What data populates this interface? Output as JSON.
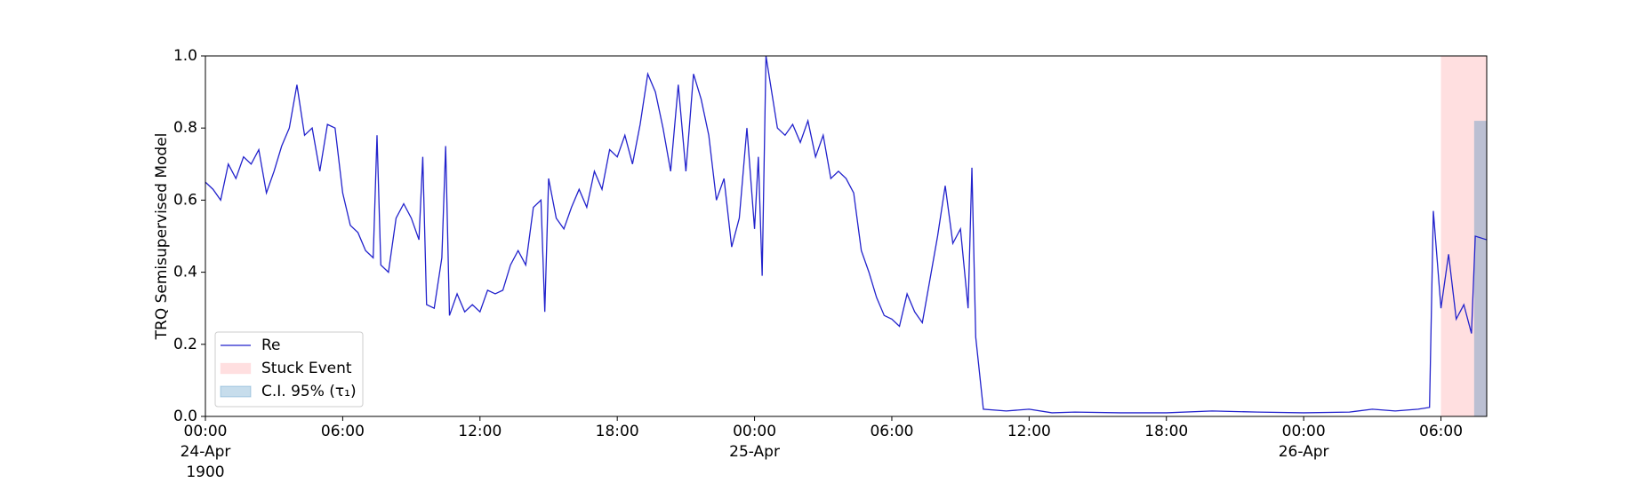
{
  "chart_data": {
    "type": "line",
    "ylabel": "TRQ Semisupervised Model",
    "x": [
      "1900-04-24 00:00",
      "1900-04-24 00:20",
      "1900-04-24 00:40",
      "1900-04-24 01:00",
      "1900-04-24 01:20",
      "1900-04-24 01:40",
      "1900-04-24 02:00",
      "1900-04-24 02:20",
      "1900-04-24 02:40",
      "1900-04-24 03:00",
      "1900-04-24 03:20",
      "1900-04-24 03:40",
      "1900-04-24 04:00",
      "1900-04-24 04:20",
      "1900-04-24 04:40",
      "1900-04-24 05:00",
      "1900-04-24 05:20",
      "1900-04-24 05:40",
      "1900-04-24 06:00",
      "1900-04-24 06:20",
      "1900-04-24 06:40",
      "1900-04-24 07:00",
      "1900-04-24 07:20",
      "1900-04-24 07:30",
      "1900-04-24 07:40",
      "1900-04-24 08:00",
      "1900-04-24 08:20",
      "1900-04-24 08:40",
      "1900-04-24 09:00",
      "1900-04-24 09:20",
      "1900-04-24 09:30",
      "1900-04-24 09:40",
      "1900-04-24 10:00",
      "1900-04-24 10:20",
      "1900-04-24 10:30",
      "1900-04-24 10:40",
      "1900-04-24 11:00",
      "1900-04-24 11:20",
      "1900-04-24 11:40",
      "1900-04-24 12:00",
      "1900-04-24 12:20",
      "1900-04-24 12:40",
      "1900-04-24 13:00",
      "1900-04-24 13:20",
      "1900-04-24 13:40",
      "1900-04-24 14:00",
      "1900-04-24 14:20",
      "1900-04-24 14:40",
      "1900-04-24 14:50",
      "1900-04-24 15:00",
      "1900-04-24 15:20",
      "1900-04-24 15:40",
      "1900-04-24 16:00",
      "1900-04-24 16:20",
      "1900-04-24 16:40",
      "1900-04-24 17:00",
      "1900-04-24 17:20",
      "1900-04-24 17:40",
      "1900-04-24 18:00",
      "1900-04-24 18:20",
      "1900-04-24 18:40",
      "1900-04-24 19:00",
      "1900-04-24 19:20",
      "1900-04-24 19:40",
      "1900-04-24 20:00",
      "1900-04-24 20:20",
      "1900-04-24 20:40",
      "1900-04-24 21:00",
      "1900-04-24 21:20",
      "1900-04-24 21:40",
      "1900-04-24 22:00",
      "1900-04-24 22:20",
      "1900-04-24 22:40",
      "1900-04-24 23:00",
      "1900-04-24 23:20",
      "1900-04-24 23:40",
      "1900-04-25 00:00",
      "1900-04-25 00:10",
      "1900-04-25 00:20",
      "1900-04-25 00:30",
      "1900-04-25 01:00",
      "1900-04-25 01:20",
      "1900-04-25 01:40",
      "1900-04-25 02:00",
      "1900-04-25 02:20",
      "1900-04-25 02:40",
      "1900-04-25 03:00",
      "1900-04-25 03:20",
      "1900-04-25 03:40",
      "1900-04-25 04:00",
      "1900-04-25 04:20",
      "1900-04-25 04:40",
      "1900-04-25 05:00",
      "1900-04-25 05:20",
      "1900-04-25 05:40",
      "1900-04-25 06:00",
      "1900-04-25 06:20",
      "1900-04-25 06:40",
      "1900-04-25 07:00",
      "1900-04-25 07:20",
      "1900-04-25 07:40",
      "1900-04-25 08:00",
      "1900-04-25 08:20",
      "1900-04-25 08:40",
      "1900-04-25 09:00",
      "1900-04-25 09:20",
      "1900-04-25 09:30",
      "1900-04-25 09:40",
      "1900-04-25 10:00",
      "1900-04-25 11:00",
      "1900-04-25 12:00",
      "1900-04-25 13:00",
      "1900-04-25 14:00",
      "1900-04-25 16:00",
      "1900-04-25 18:00",
      "1900-04-25 20:00",
      "1900-04-25 22:00",
      "1900-04-26 00:00",
      "1900-04-26 02:00",
      "1900-04-26 03:00",
      "1900-04-26 04:00",
      "1900-04-26 05:00",
      "1900-04-26 05:30",
      "1900-04-26 05:40",
      "1900-04-26 06:00",
      "1900-04-26 06:20",
      "1900-04-26 06:40",
      "1900-04-26 07:00",
      "1900-04-26 07:20",
      "1900-04-26 07:30",
      "1900-04-26 08:00"
    ],
    "series": [
      {
        "name": "Re",
        "color": "#2222cc",
        "values": [
          0.65,
          0.63,
          0.6,
          0.7,
          0.66,
          0.72,
          0.7,
          0.74,
          0.62,
          0.68,
          0.75,
          0.8,
          0.92,
          0.78,
          0.8,
          0.68,
          0.81,
          0.8,
          0.62,
          0.53,
          0.51,
          0.46,
          0.44,
          0.78,
          0.42,
          0.4,
          0.55,
          0.59,
          0.55,
          0.49,
          0.72,
          0.31,
          0.3,
          0.44,
          0.75,
          0.28,
          0.34,
          0.29,
          0.31,
          0.29,
          0.35,
          0.34,
          0.35,
          0.42,
          0.46,
          0.42,
          0.58,
          0.6,
          0.29,
          0.66,
          0.55,
          0.52,
          0.58,
          0.63,
          0.58,
          0.68,
          0.63,
          0.74,
          0.72,
          0.78,
          0.7,
          0.81,
          0.95,
          0.9,
          0.8,
          0.68,
          0.92,
          0.68,
          0.95,
          0.88,
          0.78,
          0.6,
          0.66,
          0.47,
          0.55,
          0.8,
          0.52,
          0.72,
          0.39,
          1.0,
          0.8,
          0.78,
          0.81,
          0.76,
          0.82,
          0.72,
          0.78,
          0.66,
          0.68,
          0.66,
          0.62,
          0.46,
          0.4,
          0.33,
          0.28,
          0.27,
          0.25,
          0.34,
          0.29,
          0.26,
          0.38,
          0.5,
          0.64,
          0.48,
          0.52,
          0.3,
          0.69,
          0.22,
          0.02,
          0.015,
          0.02,
          0.01,
          0.012,
          0.01,
          0.01,
          0.015,
          0.012,
          0.01,
          0.012,
          0.02,
          0.015,
          0.02,
          0.025,
          0.57,
          0.3,
          0.45,
          0.27,
          0.31,
          0.23,
          0.5,
          0.49
        ]
      }
    ],
    "spans": [
      {
        "name": "Stuck Event",
        "color": "#ffdfe0",
        "start": "1900-04-26 06:00",
        "end": "1900-04-26 08:00"
      },
      {
        "name": "C.I. 95% (τ₁)",
        "color": "#1f77b4",
        "start": "1900-04-26 07:27",
        "end": "1900-04-26 08:00",
        "top": 0.82
      }
    ],
    "xlim": [
      "1900-04-24 00:00",
      "1900-04-26 08:00"
    ],
    "xticks": [
      {
        "value": "1900-04-24 00:00",
        "label": "00:00\n24-Apr\n1900"
      },
      {
        "value": "1900-04-24 06:00",
        "label": "06:00"
      },
      {
        "value": "1900-04-24 12:00",
        "label": "12:00"
      },
      {
        "value": "1900-04-24 18:00",
        "label": "18:00"
      },
      {
        "value": "1900-04-25 00:00",
        "label": "00:00\n25-Apr"
      },
      {
        "value": "1900-04-25 06:00",
        "label": "06:00"
      },
      {
        "value": "1900-04-25 12:00",
        "label": "12:00"
      },
      {
        "value": "1900-04-25 18:00",
        "label": "18:00"
      },
      {
        "value": "1900-04-26 00:00",
        "label": "00:00\n26-Apr"
      },
      {
        "value": "1900-04-26 06:00",
        "label": "06:00"
      }
    ],
    "ylim": [
      0,
      1
    ],
    "yticks": [
      {
        "value": 0,
        "label": "0.0"
      },
      {
        "value": 0.2,
        "label": "0.2"
      },
      {
        "value": 0.4,
        "label": "0.4"
      },
      {
        "value": 0.6,
        "label": "0.6"
      },
      {
        "value": 0.8,
        "label": "0.8"
      },
      {
        "value": 1,
        "label": "1.0"
      }
    ],
    "legend": "lower left"
  }
}
